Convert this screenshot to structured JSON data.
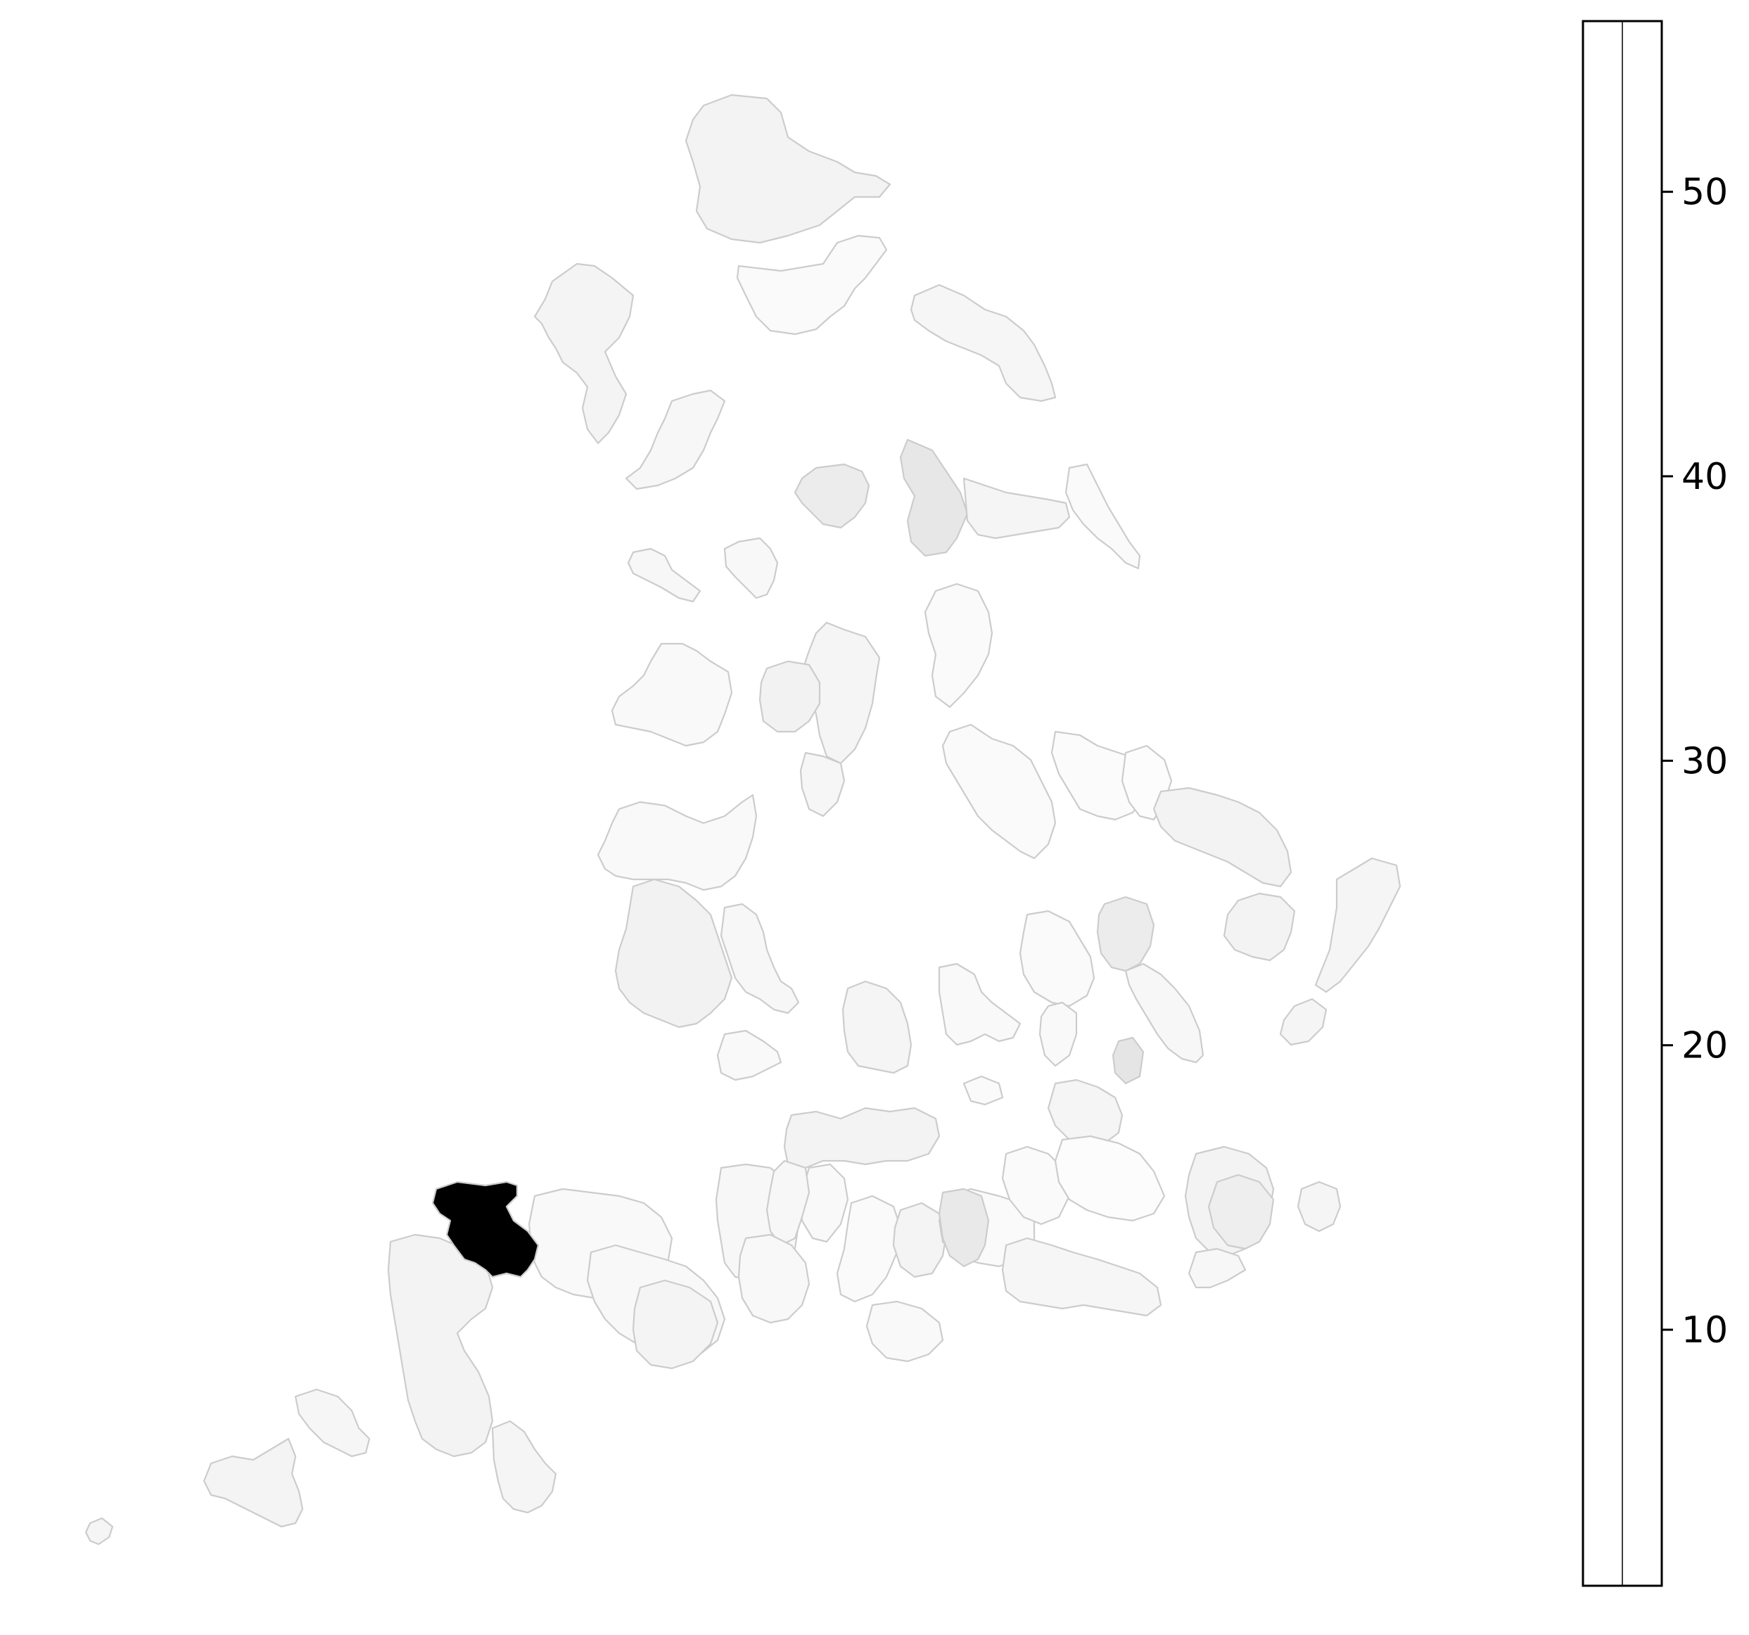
{
  "map": {
    "type": "choropleth",
    "colormap": "Greys",
    "border_color": "#cccccc",
    "highlight_color": "#000000",
    "base_color": "#f7f7f7"
  },
  "colorbar": {
    "orientation": "vertical",
    "location": "right",
    "range": [
      1,
      56
    ],
    "ticks": [
      {
        "value": 10,
        "label": "10"
      },
      {
        "value": 20,
        "label": "20"
      },
      {
        "value": 30,
        "label": "30"
      },
      {
        "value": 40,
        "label": "40"
      },
      {
        "value": 50,
        "label": "50"
      }
    ]
  }
}
